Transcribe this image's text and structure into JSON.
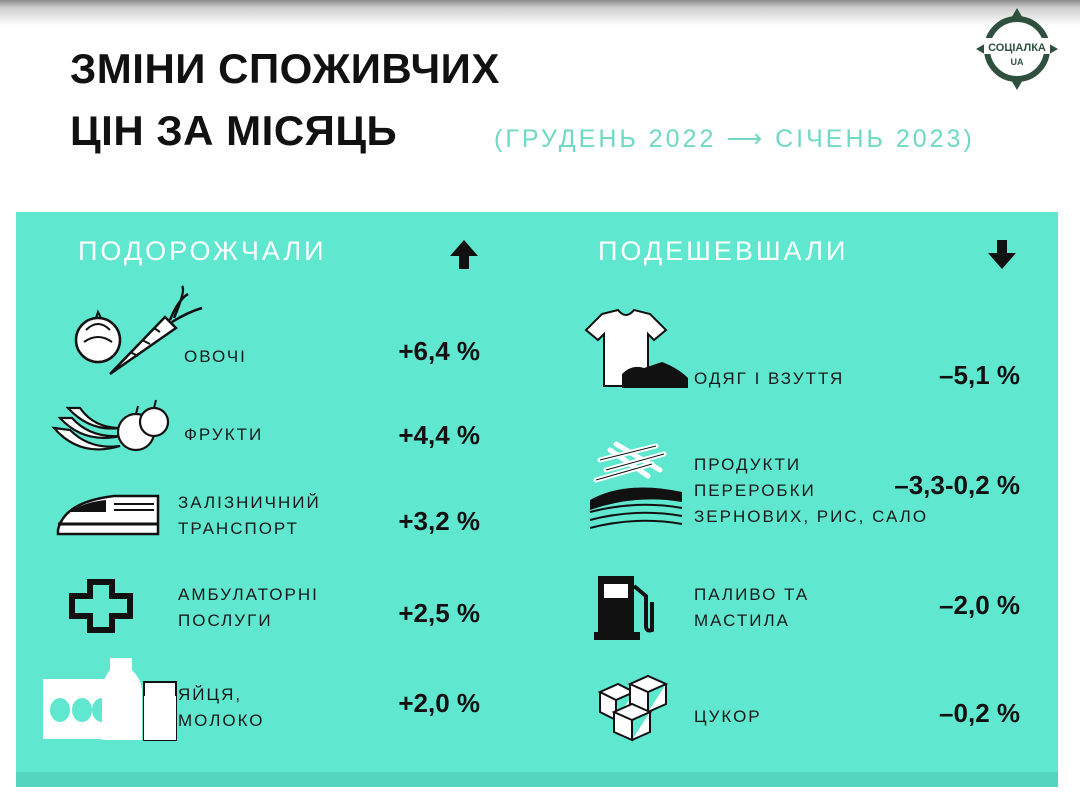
{
  "header": {
    "title_line1": "ЗМІНИ СПОЖИВЧИХ",
    "title_line2": "ЦІН ЗА МІСЯЦЬ",
    "period": "(ГРУДЕНЬ 2022 ⟶ СІЧЕНЬ 2023)",
    "logo_text_top": "СОЦІАЛКА",
    "logo_text_bottom": "UA"
  },
  "colors": {
    "panel": "#5fe7cf",
    "period": "#6fd9c5",
    "logo": "#2f4f3f"
  },
  "rising": {
    "title": "ПОДОРОЖЧАЛИ",
    "arrow": "🡅",
    "items": [
      {
        "icon": "vegetables-icon",
        "label_lines": [
          "ОВОЧІ"
        ],
        "value": "+6,4 %"
      },
      {
        "icon": "fruits-icon",
        "label_lines": [
          "ФРУКТИ"
        ],
        "value": "+4,4 %"
      },
      {
        "icon": "train-icon",
        "label_lines": [
          "ЗАЛІЗНИЧНИЙ",
          "ТРАНСПОРТ"
        ],
        "value": "+3,2 %"
      },
      {
        "icon": "medical-cross-icon",
        "label_lines": [
          "АМБУЛАТОРНІ",
          "ПОСЛУГИ"
        ],
        "value": "+2,5 %"
      },
      {
        "icon": "eggs-milk-icon",
        "label_lines": [
          "ЯЙЦЯ,",
          "МОЛОКО"
        ],
        "value": "+2,0 %"
      }
    ]
  },
  "falling": {
    "title": "ПОДЕШЕВШАЛИ",
    "arrow": "🡇",
    "items": [
      {
        "icon": "clothing-shoes-icon",
        "label_lines": [
          "ОДЯГ І ВЗУТТЯ"
        ],
        "value": "–5,1 %"
      },
      {
        "icon": "grain-products-icon",
        "label_lines": [
          "ПРОДУКТИ",
          "ПЕРЕРОБКИ",
          "ЗЕРНОВИХ, РИС, САЛО"
        ],
        "value": "–3,3-0,2 %"
      },
      {
        "icon": "fuel-pump-icon",
        "label_lines": [
          "ПАЛИВО ТА",
          "МАСТИЛА"
        ],
        "value": "–2,0 %"
      },
      {
        "icon": "sugar-cubes-icon",
        "label_lines": [
          "ЦУКОР"
        ],
        "value": "–0,2 %"
      }
    ]
  }
}
